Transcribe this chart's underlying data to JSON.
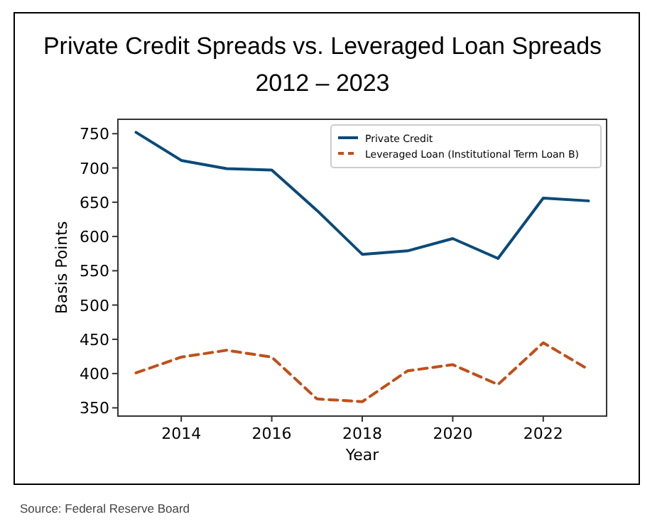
{
  "chart_data": {
    "type": "line",
    "title": "Private Credit Spreads vs. Leveraged Loan Spreads\n2012 – 2023",
    "xlabel": "Year",
    "ylabel": "Basis Points",
    "x": [
      2013,
      2014,
      2015,
      2016,
      2017,
      2018,
      2019,
      2020,
      2021,
      2022,
      2023
    ],
    "series": [
      {
        "name": "Private Credit",
        "color": "#0b4a78",
        "line_style": "solid",
        "values": [
          752,
          711,
          699,
          697,
          638,
          574,
          579,
          597,
          568,
          656,
          652
        ]
      },
      {
        "name": "Leveraged Loan (Institutional Term Loan B)",
        "color": "#c0501a",
        "line_style": "dashed",
        "values": [
          401,
          424,
          434,
          424,
          363,
          359,
          404,
          413,
          384,
          445,
          406
        ]
      }
    ],
    "xlim": [
      2012.6,
      2023.4
    ],
    "xticks": [
      2014,
      2016,
      2018,
      2020,
      2022
    ],
    "ylim": [
      338,
      771
    ],
    "yticks": [
      350,
      400,
      450,
      500,
      550,
      600,
      650,
      700,
      750
    ],
    "grid": false,
    "legend": "top right",
    "annotations": [
      "Source: Federal Reserve Board"
    ]
  }
}
